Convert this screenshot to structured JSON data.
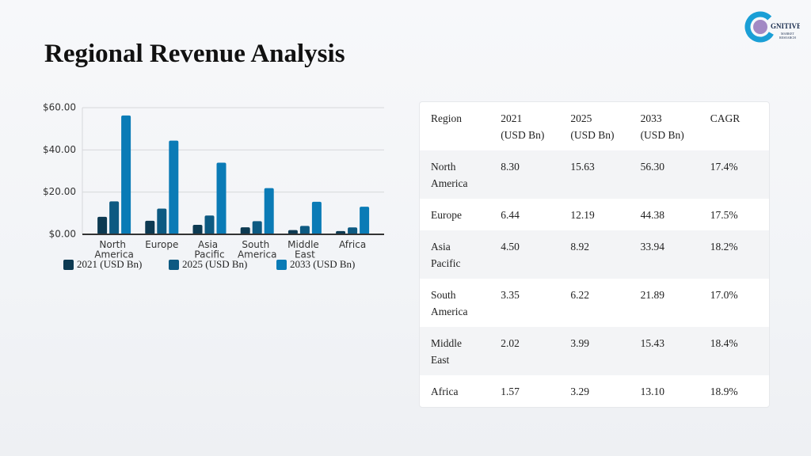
{
  "title": "Regional Revenue Analysis",
  "logo": {
    "name": "GNITIVE",
    "line1": "MARKET",
    "line2": "RESEARCH"
  },
  "chart_data": {
    "type": "bar",
    "categories": [
      "North America",
      "Europe",
      "Asia Pacific",
      "South America",
      "Middle East",
      "Africa"
    ],
    "series": [
      {
        "name": "2021 (USD Bn)",
        "color": "#0d3a52",
        "values": [
          8.3,
          6.44,
          4.5,
          3.35,
          2.02,
          1.57
        ]
      },
      {
        "name": "2025 (USD Bn)",
        "color": "#0d5a82",
        "values": [
          15.63,
          12.19,
          8.92,
          6.22,
          3.99,
          3.29
        ]
      },
      {
        "name": "2033 (USD Bn)",
        "color": "#0a7bb6",
        "values": [
          56.3,
          44.38,
          33.94,
          21.89,
          15.43,
          13.1
        ]
      }
    ],
    "ylim": [
      0,
      60
    ],
    "yticks": [
      {
        "value": 0,
        "label": "$0.00"
      },
      {
        "value": 20,
        "label": "$20.00"
      },
      {
        "value": 40,
        "label": "$40.00"
      },
      {
        "value": 60,
        "label": "$60.00"
      }
    ],
    "grid": true
  },
  "table": {
    "header": [
      "Region",
      "2021 (USD Bn)",
      "2025 (USD Bn)",
      "2033 (USD Bn)",
      "CAGR"
    ],
    "rows": [
      [
        "North America",
        "8.30",
        "15.63",
        "56.30",
        "17.4%"
      ],
      [
        "Europe",
        "6.44",
        "12.19",
        "44.38",
        "17.5%"
      ],
      [
        "Asia Pacific",
        "4.50",
        "8.92",
        "33.94",
        "18.2%"
      ],
      [
        "South America",
        "3.35",
        "6.22",
        "21.89",
        "17.0%"
      ],
      [
        "Middle East",
        "2.02",
        "3.99",
        "15.43",
        "18.4%"
      ],
      [
        "Africa",
        "1.57",
        "3.29",
        "13.10",
        "18.9%"
      ]
    ]
  }
}
